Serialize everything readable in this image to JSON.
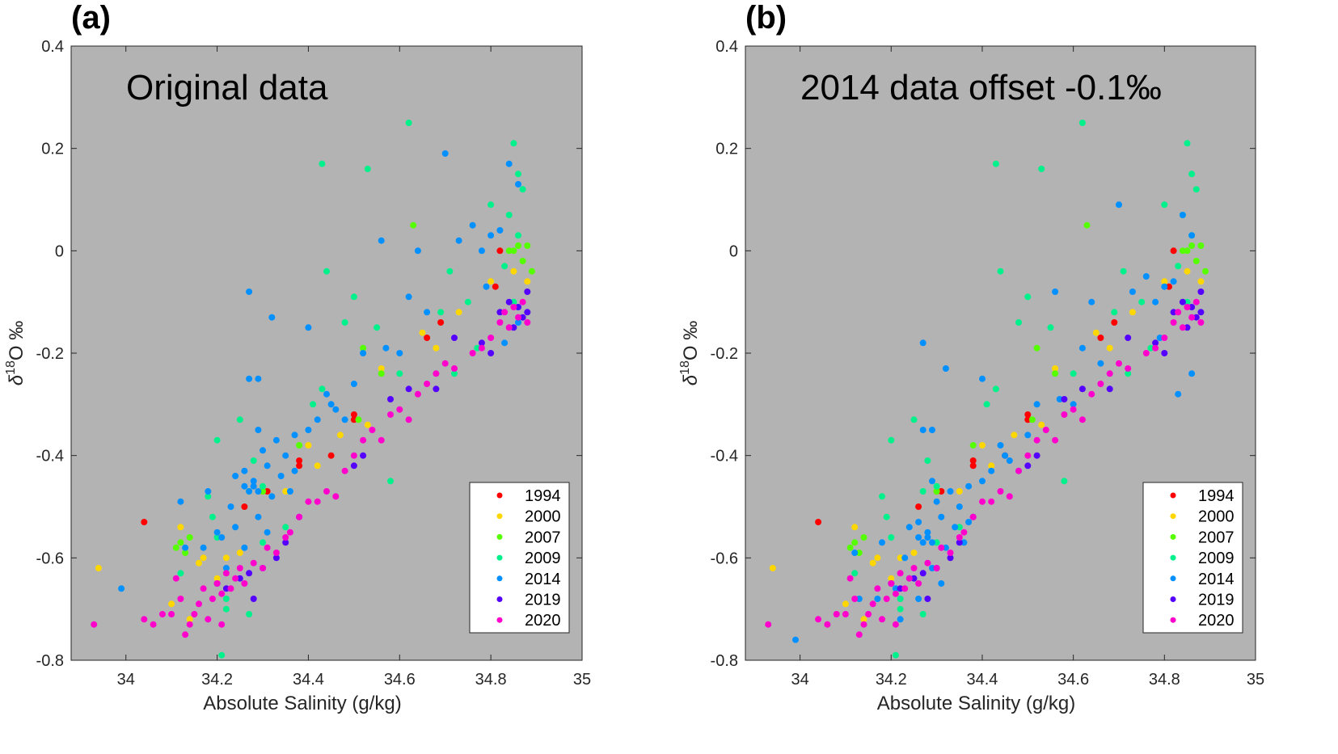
{
  "chart_data": [
    {
      "type": "scatter",
      "panel_label": "(a)",
      "title": "Original data",
      "xlabel": "Absolute Salinity (g/kg)",
      "ylabel_delta": "δ",
      "ylabel_sup": "18",
      "ylabel_rest": "O ‰",
      "xlim": [
        33.88,
        35
      ],
      "ylim": [
        -0.8,
        0.4
      ],
      "xticks": [
        "34",
        "34.2",
        "34.4",
        "34.6",
        "34.8",
        "35"
      ],
      "yticks": [
        "-0.8",
        "-0.6",
        "-0.4",
        "-0.2",
        "0",
        "0.2",
        "0.4"
      ],
      "legend_position": "bottom-right",
      "background": "#b3b3b3",
      "offset_2014": 0
    },
    {
      "type": "scatter",
      "panel_label": "(b)",
      "title": "2014 data offset -0.1‰",
      "xlabel": "Absolute Salinity (g/kg)",
      "ylabel_delta": "δ",
      "ylabel_sup": "18",
      "ylabel_rest": "O ‰",
      "xlim": [
        33.88,
        35
      ],
      "ylim": [
        -0.8,
        0.4
      ],
      "xticks": [
        "34",
        "34.2",
        "34.4",
        "34.6",
        "34.8",
        "35"
      ],
      "yticks": [
        "-0.8",
        "-0.6",
        "-0.4",
        "-0.2",
        "0",
        "0.2",
        "0.4"
      ],
      "legend_position": "bottom-right",
      "background": "#b3b3b3",
      "offset_2014": -0.1
    }
  ],
  "series": [
    {
      "name": "1994",
      "color": "#ff0000",
      "points": [
        [
          34.04,
          -0.53
        ],
        [
          34.26,
          -0.5
        ],
        [
          34.38,
          -0.41
        ],
        [
          34.38,
          -0.42
        ],
        [
          34.45,
          -0.4
        ],
        [
          34.5,
          -0.32
        ],
        [
          34.5,
          -0.33
        ],
        [
          34.69,
          -0.14
        ],
        [
          34.66,
          -0.17
        ],
        [
          34.81,
          -0.07
        ],
        [
          34.82,
          0.0
        ],
        [
          34.3,
          -0.47
        ],
        [
          34.31,
          -0.47
        ]
      ]
    },
    {
      "name": "2000",
      "color": "#ffd700",
      "points": [
        [
          33.94,
          -0.62
        ],
        [
          34.12,
          -0.54
        ],
        [
          34.17,
          -0.6
        ],
        [
          34.16,
          -0.61
        ],
        [
          34.2,
          -0.64
        ],
        [
          34.22,
          -0.6
        ],
        [
          34.25,
          -0.59
        ],
        [
          34.1,
          -0.69
        ],
        [
          34.35,
          -0.47
        ],
        [
          34.4,
          -0.38
        ],
        [
          34.42,
          -0.42
        ],
        [
          34.47,
          -0.36
        ],
        [
          34.53,
          -0.34
        ],
        [
          34.56,
          -0.23
        ],
        [
          34.65,
          -0.16
        ],
        [
          34.68,
          -0.19
        ],
        [
          34.73,
          -0.12
        ],
        [
          34.8,
          -0.06
        ],
        [
          34.85,
          -0.04
        ],
        [
          34.88,
          -0.06
        ],
        [
          34.3,
          -0.47
        ],
        [
          34.14,
          -0.72
        ]
      ]
    },
    {
      "name": "2007",
      "color": "#55ff00",
      "points": [
        [
          34.12,
          -0.57
        ],
        [
          34.13,
          -0.59
        ],
        [
          34.11,
          -0.58
        ],
        [
          34.14,
          -0.56
        ],
        [
          34.3,
          -0.47
        ],
        [
          34.38,
          -0.38
        ],
        [
          34.51,
          -0.33
        ],
        [
          34.63,
          0.05
        ],
        [
          34.56,
          -0.24
        ],
        [
          34.84,
          0.0
        ],
        [
          34.86,
          0.01
        ],
        [
          34.88,
          0.01
        ],
        [
          34.89,
          -0.04
        ],
        [
          34.87,
          -0.02
        ],
        [
          34.85,
          0.0
        ],
        [
          34.52,
          -0.19
        ]
      ]
    },
    {
      "name": "2009",
      "color": "#00f08c",
      "points": [
        [
          34.2,
          -0.37
        ],
        [
          34.21,
          -0.79
        ],
        [
          34.27,
          -0.71
        ],
        [
          34.22,
          -0.68
        ],
        [
          34.25,
          -0.33
        ],
        [
          34.28,
          -0.41
        ],
        [
          34.3,
          -0.46
        ],
        [
          34.43,
          0.17
        ],
        [
          34.53,
          0.16
        ],
        [
          34.62,
          0.25
        ],
        [
          34.44,
          -0.04
        ],
        [
          34.5,
          -0.09
        ],
        [
          34.48,
          -0.14
        ],
        [
          34.55,
          -0.15
        ],
        [
          34.41,
          -0.3
        ],
        [
          34.43,
          -0.27
        ],
        [
          34.58,
          -0.45
        ],
        [
          34.6,
          -0.24
        ],
        [
          34.69,
          -0.12
        ],
        [
          34.71,
          -0.04
        ],
        [
          34.75,
          -0.1
        ],
        [
          34.8,
          0.09
        ],
        [
          34.85,
          0.21
        ],
        [
          34.86,
          0.15
        ],
        [
          34.87,
          0.12
        ],
        [
          34.84,
          0.07
        ],
        [
          34.86,
          0.03
        ],
        [
          34.83,
          -0.03
        ],
        [
          34.85,
          -0.1
        ],
        [
          34.77,
          -0.19
        ],
        [
          34.72,
          -0.24
        ],
        [
          34.2,
          -0.56
        ],
        [
          34.19,
          -0.52
        ],
        [
          34.3,
          -0.57
        ],
        [
          34.35,
          -0.54
        ],
        [
          34.12,
          -0.63
        ],
        [
          34.27,
          -0.47
        ],
        [
          34.18,
          -0.48
        ],
        [
          34.22,
          -0.7
        ]
      ]
    },
    {
      "name": "2014",
      "color": "#0090ff",
      "points": [
        [
          33.99,
          -0.66
        ],
        [
          34.12,
          -0.49
        ],
        [
          34.18,
          -0.47
        ],
        [
          34.2,
          -0.55
        ],
        [
          34.24,
          -0.44
        ],
        [
          34.26,
          -0.43
        ],
        [
          34.28,
          -0.46
        ],
        [
          34.27,
          -0.08
        ],
        [
          34.27,
          -0.25
        ],
        [
          34.29,
          -0.25
        ],
        [
          34.32,
          -0.13
        ],
        [
          34.29,
          -0.35
        ],
        [
          34.3,
          -0.39
        ],
        [
          34.31,
          -0.42
        ],
        [
          34.33,
          -0.37
        ],
        [
          34.34,
          -0.44
        ],
        [
          34.35,
          -0.4
        ],
        [
          34.36,
          -0.47
        ],
        [
          34.37,
          -0.43
        ],
        [
          34.4,
          -0.15
        ],
        [
          34.44,
          -0.28
        ],
        [
          34.45,
          -0.3
        ],
        [
          34.46,
          -0.31
        ],
        [
          34.48,
          -0.33
        ],
        [
          34.5,
          -0.26
        ],
        [
          34.52,
          -0.2
        ],
        [
          34.56,
          0.02
        ],
        [
          34.57,
          -0.19
        ],
        [
          34.6,
          -0.2
        ],
        [
          34.62,
          -0.09
        ],
        [
          34.64,
          0.0
        ],
        [
          34.66,
          -0.12
        ],
        [
          34.7,
          0.19
        ],
        [
          34.73,
          0.02
        ],
        [
          34.76,
          0.05
        ],
        [
          34.78,
          0.0
        ],
        [
          34.8,
          0.03
        ],
        [
          34.82,
          0.04
        ],
        [
          34.84,
          0.17
        ],
        [
          34.86,
          0.13
        ],
        [
          34.79,
          -0.07
        ],
        [
          34.83,
          -0.18
        ],
        [
          34.86,
          -0.14
        ],
        [
          34.22,
          -0.62
        ],
        [
          34.24,
          -0.54
        ],
        [
          34.26,
          -0.58
        ],
        [
          34.29,
          -0.52
        ],
        [
          34.31,
          -0.55
        ],
        [
          34.23,
          -0.5
        ],
        [
          34.27,
          -0.47
        ],
        [
          34.29,
          -0.47
        ],
        [
          34.32,
          -0.48
        ],
        [
          34.26,
          -0.46
        ],
        [
          34.28,
          -0.45
        ],
        [
          34.21,
          -0.56
        ],
        [
          34.17,
          -0.58
        ],
        [
          34.13,
          -0.58
        ],
        [
          34.4,
          -0.35
        ],
        [
          34.42,
          -0.33
        ],
        [
          34.37,
          -0.36
        ]
      ]
    },
    {
      "name": "2019",
      "color": "#5500ff",
      "points": [
        [
          34.22,
          -0.66
        ],
        [
          34.25,
          -0.64
        ],
        [
          34.27,
          -0.63
        ],
        [
          34.3,
          -0.62
        ],
        [
          34.33,
          -0.6
        ],
        [
          34.35,
          -0.57
        ],
        [
          34.38,
          -0.52
        ],
        [
          34.5,
          -0.42
        ],
        [
          34.52,
          -0.4
        ],
        [
          34.58,
          -0.29
        ],
        [
          34.62,
          -0.27
        ],
        [
          34.68,
          -0.27
        ],
        [
          34.72,
          -0.17
        ],
        [
          34.78,
          -0.18
        ],
        [
          34.8,
          -0.2
        ],
        [
          34.82,
          -0.12
        ],
        [
          34.84,
          -0.1
        ],
        [
          34.85,
          -0.15
        ],
        [
          34.87,
          -0.13
        ],
        [
          34.88,
          -0.08
        ],
        [
          34.88,
          -0.12
        ],
        [
          34.86,
          -0.11
        ],
        [
          34.2,
          -0.65
        ],
        [
          34.28,
          -0.68
        ]
      ]
    },
    {
      "name": "2020",
      "color": "#ff00cc",
      "points": [
        [
          33.93,
          -0.73
        ],
        [
          34.04,
          -0.72
        ],
        [
          34.06,
          -0.73
        ],
        [
          34.08,
          -0.71
        ],
        [
          34.1,
          -0.71
        ],
        [
          34.11,
          -0.64
        ],
        [
          34.12,
          -0.68
        ],
        [
          34.13,
          -0.75
        ],
        [
          34.14,
          -0.73
        ],
        [
          34.16,
          -0.69
        ],
        [
          34.17,
          -0.66
        ],
        [
          34.18,
          -0.72
        ],
        [
          34.19,
          -0.68
        ],
        [
          34.2,
          -0.65
        ],
        [
          34.21,
          -0.67
        ],
        [
          34.22,
          -0.63
        ],
        [
          34.23,
          -0.66
        ],
        [
          34.24,
          -0.64
        ],
        [
          34.25,
          -0.62
        ],
        [
          34.26,
          -0.65
        ],
        [
          34.28,
          -0.61
        ],
        [
          34.3,
          -0.62
        ],
        [
          34.31,
          -0.58
        ],
        [
          34.33,
          -0.59
        ],
        [
          34.35,
          -0.56
        ],
        [
          34.36,
          -0.55
        ],
        [
          34.38,
          -0.52
        ],
        [
          34.4,
          -0.49
        ],
        [
          34.42,
          -0.49
        ],
        [
          34.44,
          -0.47
        ],
        [
          34.46,
          -0.48
        ],
        [
          34.48,
          -0.43
        ],
        [
          34.5,
          -0.4
        ],
        [
          34.52,
          -0.37
        ],
        [
          34.54,
          -0.35
        ],
        [
          34.56,
          -0.37
        ],
        [
          34.58,
          -0.32
        ],
        [
          34.6,
          -0.31
        ],
        [
          34.62,
          -0.33
        ],
        [
          34.64,
          -0.28
        ],
        [
          34.66,
          -0.26
        ],
        [
          34.68,
          -0.24
        ],
        [
          34.7,
          -0.22
        ],
        [
          34.72,
          -0.23
        ],
        [
          34.76,
          -0.2
        ],
        [
          34.78,
          -0.19
        ],
        [
          34.8,
          -0.17
        ],
        [
          34.82,
          -0.14
        ],
        [
          34.83,
          -0.12
        ],
        [
          34.84,
          -0.15
        ],
        [
          34.85,
          -0.11
        ],
        [
          34.86,
          -0.13
        ],
        [
          34.87,
          -0.1
        ],
        [
          34.88,
          -0.14
        ],
        [
          34.21,
          -0.73
        ],
        [
          34.15,
          -0.71
        ]
      ]
    }
  ]
}
